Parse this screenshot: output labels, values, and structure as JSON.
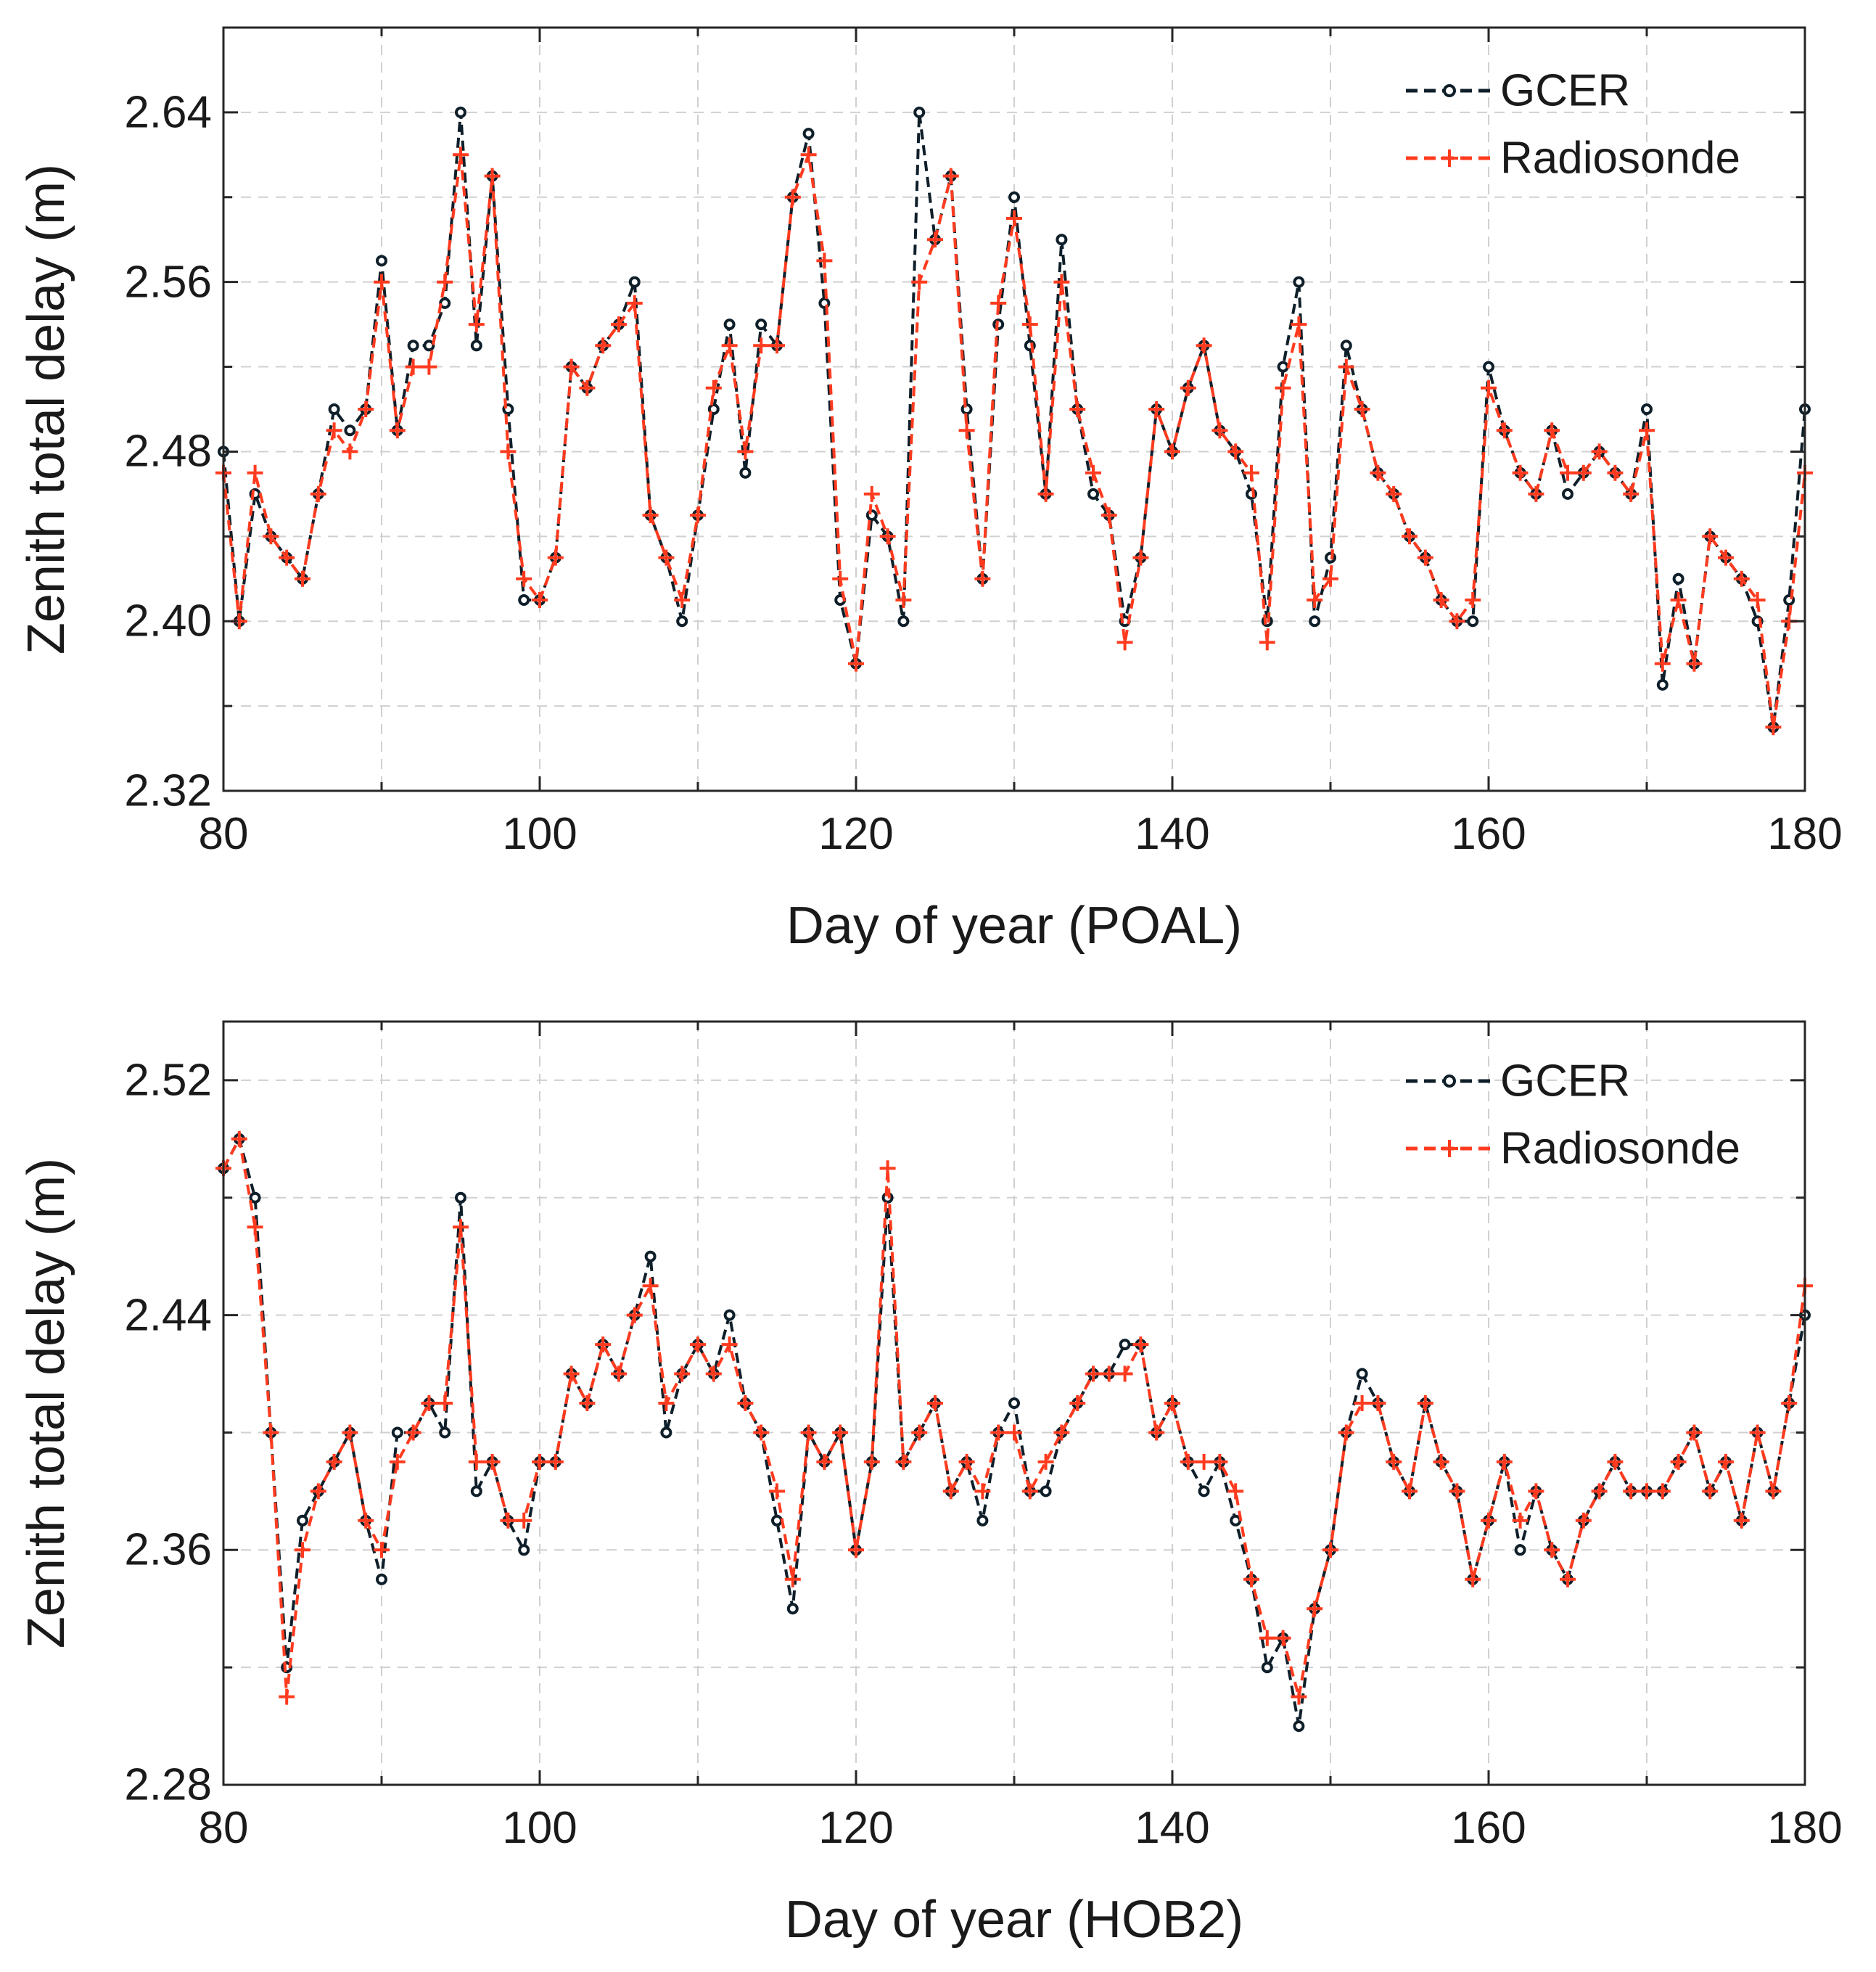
{
  "figure": {
    "background": "#ffffff"
  },
  "colors": {
    "gcer": "#0f1f2a",
    "radiosonde": "#ff3b1f",
    "grid": "#d0d0d0",
    "axis": "#262626"
  },
  "chart_data": [
    {
      "type": "line",
      "xlabel": "Day of year (POAL)",
      "ylabel": "Zenith total delay (m)",
      "xlim": [
        80,
        180
      ],
      "ylim": [
        2.32,
        2.68
      ],
      "xticks": [
        80,
        100,
        120,
        140,
        160,
        180
      ],
      "xtick_labels": [
        "80",
        "100",
        "120",
        "140",
        "160",
        "180"
      ],
      "yticks": [
        2.32,
        2.4,
        2.48,
        2.56,
        2.64
      ],
      "ytick_labels": [
        "2.32",
        "2.40",
        "2.48",
        "2.56",
        "2.64"
      ],
      "grid": true,
      "legend": {
        "position": "top-right",
        "entries": [
          "GCER",
          "Radiosonde"
        ]
      },
      "series": [
        {
          "name": "GCER",
          "style": "dashed-circles",
          "x": [
            80,
            81,
            82,
            83,
            84,
            85,
            86,
            87,
            88,
            89,
            90,
            91,
            92,
            93,
            94,
            95,
            96,
            97,
            98,
            99,
            100,
            101,
            102,
            103,
            104,
            105,
            106,
            107,
            108,
            109,
            110,
            111,
            112,
            113,
            114,
            115,
            116,
            117,
            118,
            119,
            120,
            121,
            122,
            123,
            124,
            125,
            126,
            127,
            128,
            129,
            130,
            131,
            132,
            133,
            134,
            135,
            136,
            137,
            138,
            139,
            140,
            141,
            142,
            143,
            144,
            145,
            146,
            147,
            148,
            149,
            150,
            151,
            152,
            153,
            154,
            155,
            156,
            157,
            158,
            159,
            160,
            161,
            162,
            163,
            164,
            165,
            166,
            167,
            168,
            169,
            170,
            171,
            172,
            173,
            174,
            175,
            176,
            177,
            178,
            179,
            180
          ],
          "values": [
            2.48,
            2.4,
            2.46,
            2.44,
            2.43,
            2.42,
            2.46,
            2.5,
            2.49,
            2.5,
            2.57,
            2.49,
            2.53,
            2.53,
            2.55,
            2.64,
            2.53,
            2.61,
            2.5,
            2.41,
            2.41,
            2.43,
            2.52,
            2.51,
            2.53,
            2.54,
            2.56,
            2.45,
            2.43,
            2.4,
            2.45,
            2.5,
            2.54,
            2.47,
            2.54,
            2.53,
            2.6,
            2.63,
            2.55,
            2.41,
            2.38,
            2.45,
            2.44,
            2.4,
            2.64,
            2.58,
            2.61,
            2.5,
            2.42,
            2.54,
            2.6,
            2.53,
            2.46,
            2.58,
            2.5,
            2.46,
            2.45,
            2.4,
            2.43,
            2.5,
            2.48,
            2.51,
            2.53,
            2.49,
            2.48,
            2.46,
            2.4,
            2.52,
            2.56,
            2.4,
            2.43,
            2.53,
            2.5,
            2.47,
            2.46,
            2.44,
            2.43,
            2.41,
            2.4,
            2.4,
            2.52,
            2.49,
            2.47,
            2.46,
            2.49,
            2.46,
            2.47,
            2.48,
            2.47,
            2.46,
            2.5,
            2.37,
            2.42,
            2.38,
            2.44,
            2.43,
            2.42,
            2.4,
            2.35,
            2.41,
            2.5
          ]
        },
        {
          "name": "Radiosonde",
          "style": "dashed-plus",
          "x": [
            80,
            81,
            82,
            83,
            84,
            85,
            86,
            87,
            88,
            89,
            90,
            91,
            92,
            93,
            94,
            95,
            96,
            97,
            98,
            99,
            100,
            101,
            102,
            103,
            104,
            105,
            106,
            107,
            108,
            109,
            110,
            111,
            112,
            113,
            114,
            115,
            116,
            117,
            118,
            119,
            120,
            121,
            122,
            123,
            124,
            125,
            126,
            127,
            128,
            129,
            130,
            131,
            132,
            133,
            134,
            135,
            136,
            137,
            138,
            139,
            140,
            141,
            142,
            143,
            144,
            145,
            146,
            147,
            148,
            149,
            150,
            151,
            152,
            153,
            154,
            155,
            156,
            157,
            158,
            159,
            160,
            161,
            162,
            163,
            164,
            165,
            166,
            167,
            168,
            169,
            170,
            171,
            172,
            173,
            174,
            175,
            176,
            177,
            178,
            179,
            180
          ],
          "values": [
            2.47,
            2.4,
            2.47,
            2.44,
            2.43,
            2.42,
            2.46,
            2.49,
            2.48,
            2.5,
            2.56,
            2.49,
            2.52,
            2.52,
            2.56,
            2.62,
            2.54,
            2.61,
            2.48,
            2.42,
            2.41,
            2.43,
            2.52,
            2.51,
            2.53,
            2.54,
            2.55,
            2.45,
            2.43,
            2.41,
            2.45,
            2.51,
            2.53,
            2.48,
            2.53,
            2.53,
            2.6,
            2.62,
            2.57,
            2.42,
            2.38,
            2.46,
            2.44,
            2.41,
            2.56,
            2.58,
            2.61,
            2.49,
            2.42,
            2.55,
            2.59,
            2.54,
            2.46,
            2.56,
            2.5,
            2.47,
            2.45,
            2.39,
            2.43,
            2.5,
            2.48,
            2.51,
            2.53,
            2.49,
            2.48,
            2.47,
            2.39,
            2.51,
            2.54,
            2.41,
            2.42,
            2.52,
            2.5,
            2.47,
            2.46,
            2.44,
            2.43,
            2.41,
            2.4,
            2.41,
            2.51,
            2.49,
            2.47,
            2.46,
            2.49,
            2.47,
            2.47,
            2.48,
            2.47,
            2.46,
            2.49,
            2.38,
            2.41,
            2.38,
            2.44,
            2.43,
            2.42,
            2.41,
            2.35,
            2.4,
            2.47
          ]
        }
      ]
    },
    {
      "type": "line",
      "xlabel": "Day of year (HOB2)",
      "ylabel": "Zenith total delay (m)",
      "xlim": [
        80,
        180
      ],
      "ylim": [
        2.28,
        2.54
      ],
      "xticks": [
        80,
        100,
        120,
        140,
        160,
        180
      ],
      "xtick_labels": [
        "80",
        "100",
        "120",
        "140",
        "160",
        "180"
      ],
      "yticks": [
        2.28,
        2.36,
        2.44,
        2.52
      ],
      "ytick_labels": [
        "2.28",
        "2.36",
        "2.44",
        "2.52"
      ],
      "grid": true,
      "legend": {
        "position": "top-right",
        "entries": [
          "GCER",
          "Radiosonde"
        ]
      },
      "series": [
        {
          "name": "GCER",
          "style": "dashed-circles",
          "x": [
            80,
            81,
            82,
            83,
            84,
            85,
            86,
            87,
            88,
            89,
            90,
            91,
            92,
            93,
            94,
            95,
            96,
            97,
            98,
            99,
            100,
            101,
            102,
            103,
            104,
            105,
            106,
            107,
            108,
            109,
            110,
            111,
            112,
            113,
            114,
            115,
            116,
            117,
            118,
            119,
            120,
            121,
            122,
            123,
            124,
            125,
            126,
            127,
            128,
            129,
            130,
            131,
            132,
            133,
            134,
            135,
            136,
            137,
            138,
            139,
            140,
            141,
            142,
            143,
            144,
            145,
            146,
            147,
            148,
            149,
            150,
            151,
            152,
            153,
            154,
            155,
            156,
            157,
            158,
            159,
            160,
            161,
            162,
            163,
            164,
            165,
            166,
            167,
            168,
            169,
            170,
            171,
            172,
            173,
            174,
            175,
            176,
            177,
            178,
            179,
            180
          ],
          "values": [
            2.49,
            2.5,
            2.48,
            2.4,
            2.32,
            2.37,
            2.38,
            2.39,
            2.4,
            2.37,
            2.35,
            2.4,
            2.4,
            2.41,
            2.4,
            2.48,
            2.38,
            2.39,
            2.37,
            2.36,
            2.39,
            2.39,
            2.42,
            2.41,
            2.43,
            2.42,
            2.44,
            2.46,
            2.4,
            2.42,
            2.43,
            2.42,
            2.44,
            2.41,
            2.4,
            2.37,
            2.34,
            2.4,
            2.39,
            2.4,
            2.36,
            2.39,
            2.48,
            2.39,
            2.4,
            2.41,
            2.38,
            2.39,
            2.37,
            2.4,
            2.41,
            2.38,
            2.38,
            2.4,
            2.41,
            2.42,
            2.42,
            2.43,
            2.43,
            2.4,
            2.41,
            2.39,
            2.38,
            2.39,
            2.37,
            2.35,
            2.32,
            2.33,
            2.3,
            2.34,
            2.36,
            2.4,
            2.42,
            2.41,
            2.39,
            2.38,
            2.41,
            2.39,
            2.38,
            2.35,
            2.37,
            2.39,
            2.36,
            2.38,
            2.36,
            2.35,
            2.37,
            2.38,
            2.39,
            2.38,
            2.38,
            2.38,
            2.39,
            2.4,
            2.38,
            2.39,
            2.37,
            2.4,
            2.38,
            2.41,
            2.44
          ]
        },
        {
          "name": "Radiosonde",
          "style": "dashed-plus",
          "x": [
            80,
            81,
            82,
            83,
            84,
            85,
            86,
            87,
            88,
            89,
            90,
            91,
            92,
            93,
            94,
            95,
            96,
            97,
            98,
            99,
            100,
            101,
            102,
            103,
            104,
            105,
            106,
            107,
            108,
            109,
            110,
            111,
            112,
            113,
            114,
            115,
            116,
            117,
            118,
            119,
            120,
            121,
            122,
            123,
            124,
            125,
            126,
            127,
            128,
            129,
            130,
            131,
            132,
            133,
            134,
            135,
            136,
            137,
            138,
            139,
            140,
            141,
            142,
            143,
            144,
            145,
            146,
            147,
            148,
            149,
            150,
            151,
            152,
            153,
            154,
            155,
            156,
            157,
            158,
            159,
            160,
            161,
            162,
            163,
            164,
            165,
            166,
            167,
            168,
            169,
            170,
            171,
            172,
            173,
            174,
            175,
            176,
            177,
            178,
            179,
            180
          ],
          "values": [
            2.49,
            2.5,
            2.47,
            2.4,
            2.31,
            2.36,
            2.38,
            2.39,
            2.4,
            2.37,
            2.36,
            2.39,
            2.4,
            2.41,
            2.41,
            2.47,
            2.39,
            2.39,
            2.37,
            2.37,
            2.39,
            2.39,
            2.42,
            2.41,
            2.43,
            2.42,
            2.44,
            2.45,
            2.41,
            2.42,
            2.43,
            2.42,
            2.43,
            2.41,
            2.4,
            2.38,
            2.35,
            2.4,
            2.39,
            2.4,
            2.36,
            2.39,
            2.49,
            2.39,
            2.4,
            2.41,
            2.38,
            2.39,
            2.38,
            2.4,
            2.4,
            2.38,
            2.39,
            2.4,
            2.41,
            2.42,
            2.42,
            2.42,
            2.43,
            2.4,
            2.41,
            2.39,
            2.39,
            2.39,
            2.38,
            2.35,
            2.33,
            2.33,
            2.31,
            2.34,
            2.36,
            2.4,
            2.41,
            2.41,
            2.39,
            2.38,
            2.41,
            2.39,
            2.38,
            2.35,
            2.37,
            2.39,
            2.37,
            2.38,
            2.36,
            2.35,
            2.37,
            2.38,
            2.39,
            2.38,
            2.38,
            2.38,
            2.39,
            2.4,
            2.38,
            2.39,
            2.37,
            2.4,
            2.38,
            2.41,
            2.45
          ]
        }
      ]
    }
  ]
}
